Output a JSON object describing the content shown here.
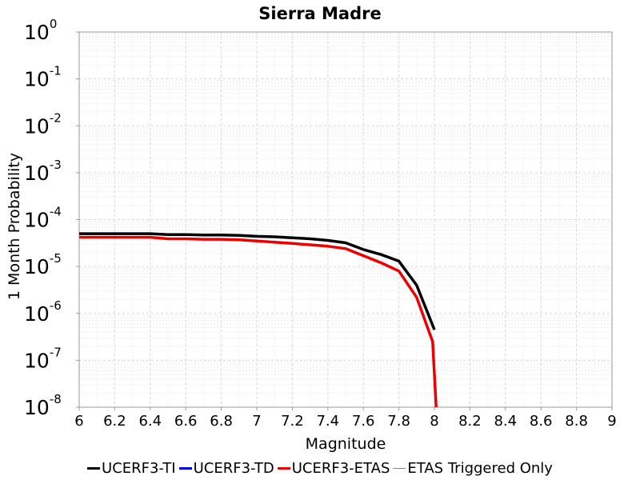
{
  "chart_data": {
    "type": "line",
    "title": "Sierra Madre",
    "xlabel": "Magnitude",
    "ylabel": "1 Month Probability",
    "xlim": [
      6,
      9
    ],
    "ylim": [
      1e-08,
      1
    ],
    "y_scale": "log",
    "grid": true,
    "legend_position": "bottom",
    "x_ticks": [
      "6",
      "6.2",
      "6.4",
      "6.6",
      "6.8",
      "7",
      "7.2",
      "7.4",
      "7.6",
      "7.8",
      "8",
      "8.2",
      "8.4",
      "8.6",
      "8.8",
      "9"
    ],
    "y_ticks": [
      {
        "base": "10",
        "exp": "0"
      },
      {
        "base": "10",
        "exp": "-1"
      },
      {
        "base": "10",
        "exp": "-2"
      },
      {
        "base": "10",
        "exp": "-3"
      },
      {
        "base": "10",
        "exp": "-4"
      },
      {
        "base": "10",
        "exp": "-5"
      },
      {
        "base": "10",
        "exp": "-6"
      },
      {
        "base": "10",
        "exp": "-7"
      },
      {
        "base": "10",
        "exp": "-8"
      }
    ],
    "series": [
      {
        "name": "UCERF3-TI",
        "color": "#000000",
        "x": [
          6.0,
          6.1,
          6.2,
          6.3,
          6.4,
          6.5,
          6.6,
          6.7,
          6.8,
          6.9,
          7.0,
          7.1,
          7.2,
          7.3,
          7.4,
          7.5,
          7.6,
          7.7,
          7.8,
          7.9,
          8.0
        ],
        "y": [
          5e-05,
          5e-05,
          5e-05,
          5e-05,
          5e-05,
          4.8e-05,
          4.8e-05,
          4.7e-05,
          4.7e-05,
          4.6e-05,
          4.4e-05,
          4.3e-05,
          4.1e-05,
          3.9e-05,
          3.6e-05,
          3.2e-05,
          2.3e-05,
          1.8e-05,
          1.3e-05,
          4e-06,
          4.5e-07
        ]
      },
      {
        "name": "UCERF3-TD",
        "color": "#0000ff",
        "x": [],
        "y": []
      },
      {
        "name": "UCERF3-ETAS",
        "color": "#ee0000",
        "x": [
          6.0,
          6.1,
          6.2,
          6.3,
          6.4,
          6.5,
          6.6,
          6.7,
          6.8,
          6.9,
          7.0,
          7.1,
          7.2,
          7.3,
          7.4,
          7.5,
          7.6,
          7.7,
          7.8,
          7.9,
          7.99,
          8.01
        ],
        "y": [
          4.2e-05,
          4.2e-05,
          4.2e-05,
          4.2e-05,
          4.2e-05,
          3.9e-05,
          3.9e-05,
          3.8e-05,
          3.8e-05,
          3.7e-05,
          3.5e-05,
          3.3e-05,
          3.1e-05,
          2.9e-05,
          2.7e-05,
          2.4e-05,
          1.7e-05,
          1.2e-05,
          8e-06,
          2.2e-06,
          2.5e-07,
          1e-08
        ]
      },
      {
        "name": "ETAS Triggered Only",
        "color": "#f0506e",
        "x": [],
        "y": []
      }
    ]
  }
}
